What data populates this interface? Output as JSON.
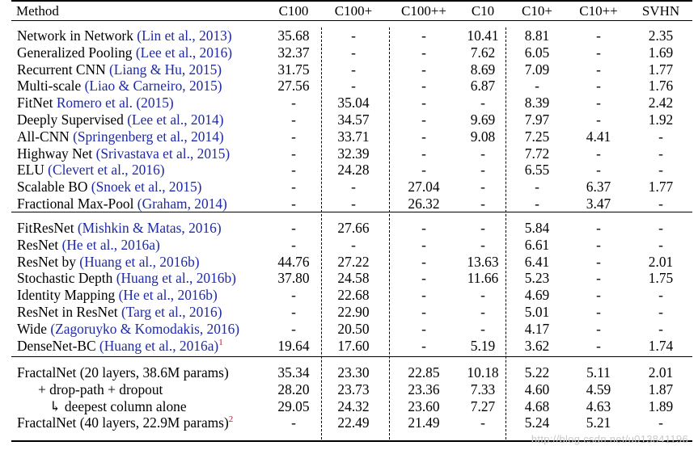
{
  "table": {
    "columns": [
      "Method",
      "C100",
      "C100+",
      "C100++",
      "C10",
      "C10+",
      "C10++",
      "SVHN"
    ],
    "groups": [
      {
        "rows": [
          {
            "name": "Network in Network",
            "cite": "(Lin et al., 2013)",
            "values": [
              "35.68",
              "-",
              "-",
              "10.41",
              "8.81",
              "-",
              "2.35"
            ]
          },
          {
            "name": "Generalized Pooling",
            "cite": "(Lee et al., 2016)",
            "values": [
              "32.37",
              "-",
              "-",
              "7.62",
              "6.05",
              "-",
              "1.69"
            ]
          },
          {
            "name": "Recurrent CNN",
            "cite": "(Liang & Hu, 2015)",
            "values": [
              "31.75",
              "-",
              "-",
              "8.69",
              "7.09",
              "-",
              "1.77"
            ]
          },
          {
            "name": "Multi-scale",
            "cite": "(Liao & Carneiro, 2015)",
            "values": [
              "27.56",
              "-",
              "-",
              "6.87",
              "-",
              "-",
              "1.76"
            ]
          },
          {
            "name": "FitNet",
            "cite": "Romero et al. (2015)",
            "values": [
              "-",
              "35.04",
              "-",
              "-",
              "8.39",
              "-",
              "2.42"
            ]
          },
          {
            "name": "Deeply Supervised",
            "cite": "(Lee et al., 2014)",
            "values": [
              "-",
              "34.57",
              "-",
              "9.69",
              "7.97",
              "-",
              "1.92"
            ]
          },
          {
            "name": "All-CNN",
            "cite": "(Springenberg et al., 2014)",
            "values": [
              "-",
              "33.71",
              "-",
              "9.08",
              "7.25",
              "4.41",
              "-"
            ]
          },
          {
            "name": "Highway Net",
            "cite": "(Srivastava et al., 2015)",
            "values": [
              "-",
              "32.39",
              "-",
              "-",
              "7.72",
              "-",
              "-"
            ]
          },
          {
            "name": "ELU",
            "cite": "(Clevert et al., 2016)",
            "values": [
              "-",
              "24.28",
              "-",
              "-",
              "6.55",
              "-",
              "-"
            ]
          },
          {
            "name": "Scalable BO",
            "cite": "(Snoek et al., 2015)",
            "values": [
              "-",
              "-",
              "27.04",
              "-",
              "-",
              "6.37",
              "1.77"
            ]
          },
          {
            "name": "Fractional Max-Pool",
            "cite": "(Graham, 2014)",
            "values": [
              "-",
              "-",
              "26.32",
              "-",
              "-",
              "3.47",
              "-"
            ]
          }
        ]
      },
      {
        "rows": [
          {
            "name": "FitResNet",
            "cite": "(Mishkin & Matas, 2016)",
            "values": [
              "-",
              "27.66",
              "-",
              "-",
              "5.84",
              "-",
              "-"
            ]
          },
          {
            "name": "ResNet",
            "cite": "(He et al., 2016a)",
            "values": [
              "-",
              "-",
              "-",
              "-",
              "6.61",
              "-",
              "-"
            ]
          },
          {
            "name": "ResNet by",
            "cite": "(Huang et al., 2016b)",
            "values": [
              "44.76",
              "27.22",
              "-",
              "13.63",
              "6.41",
              "-",
              "2.01"
            ]
          },
          {
            "name": "Stochastic Depth",
            "cite": "(Huang et al., 2016b)",
            "values": [
              "37.80",
              "24.58",
              "-",
              "11.66",
              "5.23",
              "-",
              "1.75"
            ]
          },
          {
            "name": "Identity Mapping",
            "cite": "(He et al., 2016b)",
            "values": [
              "-",
              "22.68",
              "-",
              "-",
              "4.69",
              "-",
              "-"
            ]
          },
          {
            "name": "ResNet in ResNet",
            "cite": "(Targ et al., 2016)",
            "values": [
              "-",
              "22.90",
              "-",
              "-",
              "5.01",
              "-",
              "-"
            ]
          },
          {
            "name": "Wide",
            "cite": "(Zagoruyko & Komodakis, 2016)",
            "values": [
              "-",
              "20.50",
              "-",
              "-",
              "4.17",
              "-",
              "-"
            ]
          },
          {
            "name": "DenseNet-BC",
            "cite": "(Huang et al., 2016a)",
            "sup": "1",
            "values": [
              "19.64",
              "17.60",
              "-",
              "5.19",
              "3.62",
              "-",
              "1.74"
            ]
          }
        ]
      },
      {
        "rows": [
          {
            "name": "FractalNet (20 layers, 38.6M params)",
            "values": [
              "35.34",
              "23.30",
              "22.85",
              "10.18",
              "5.22",
              "5.11",
              "2.01"
            ]
          },
          {
            "name": "+ drop-path + dropout",
            "indent": 1,
            "values": [
              "28.20",
              "23.73",
              "23.36",
              "7.33",
              "4.60",
              "4.59",
              "1.87"
            ]
          },
          {
            "name": "↳ deepest column alone",
            "indent": 2,
            "values": [
              "29.05",
              "24.32",
              "23.60",
              "7.27",
              "4.68",
              "4.63",
              "1.89"
            ]
          },
          {
            "name": "FractalNet (40 layers, 22.9M params)",
            "sup": "2",
            "values": [
              "-",
              "22.49",
              "21.49",
              "-",
              "5.24",
              "5.21",
              "-"
            ]
          }
        ]
      }
    ]
  },
  "watermark": "http://blog.csdn.net/u013841196",
  "colors": {
    "citation": "#1f2aa6",
    "footnote_marker": "#c8102e",
    "rule": "#000000"
  }
}
